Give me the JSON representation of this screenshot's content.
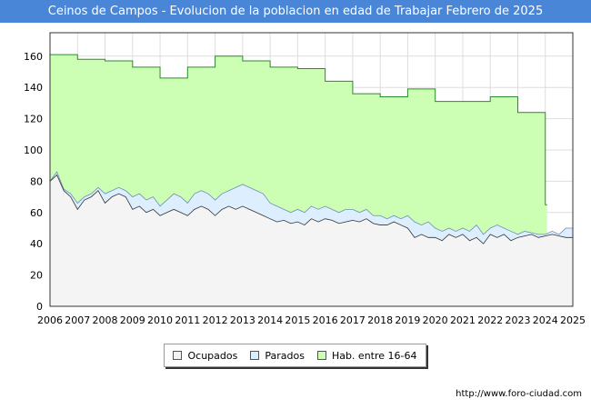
{
  "title": "Ceinos de Campos - Evolucion de la poblacion en edad de Trabajar Febrero de 2025",
  "source": "http://www.foro-ciudad.com",
  "colors": {
    "hab": "#ccffb3",
    "hab_line": "#2d8a2d",
    "parados": "#ddeeff",
    "parados_line": "#6d8fb8",
    "ocupados": "#f4f4f4",
    "ocupados_line": "#333333",
    "title_bg": "#4a86d8"
  },
  "legend": {
    "ocupados": "Ocupados",
    "parados": "Parados",
    "hab": "Hab. entre 16-64"
  },
  "chart_data": {
    "type": "area",
    "title": "Ceinos de Campos - Evolucion de la poblacion en edad de Trabajar Febrero de 2025",
    "xlabel": "",
    "ylabel": "",
    "xlim": [
      2006,
      2025
    ],
    "ylim": [
      0,
      175
    ],
    "yticks": [
      0,
      20,
      40,
      60,
      80,
      100,
      120,
      140,
      160
    ],
    "xticks": [
      "2006",
      "2007",
      "2008",
      "2009",
      "2010",
      "2011",
      "2012",
      "2013",
      "2014",
      "2015",
      "2016",
      "2017",
      "2018",
      "2019",
      "2020",
      "2021",
      "2022",
      "2023",
      "2024",
      "2025"
    ],
    "grid": true,
    "legend_position": "bottom-center",
    "series": [
      {
        "name": "Hab. entre 16-64",
        "step": true,
        "x": [
          2006,
          2007,
          2008,
          2009,
          2010,
          2011,
          2012,
          2013,
          2014,
          2015,
          2016,
          2017,
          2018,
          2019,
          2020,
          2021,
          2022,
          2023,
          2024.0
        ],
        "values": [
          161,
          158,
          157,
          153,
          146,
          153,
          160,
          157,
          153,
          152,
          144,
          136,
          134,
          139,
          131,
          131,
          134,
          124,
          65
        ]
      },
      {
        "name": "Parados",
        "x": [
          2006,
          2006.25,
          2006.5,
          2006.75,
          2007,
          2007.25,
          2007.5,
          2007.75,
          2008,
          2008.25,
          2008.5,
          2008.75,
          2009,
          2009.25,
          2009.5,
          2009.75,
          2010,
          2010.25,
          2010.5,
          2010.75,
          2011,
          2011.25,
          2011.5,
          2011.75,
          2012,
          2012.25,
          2012.5,
          2012.75,
          2013,
          2013.25,
          2013.5,
          2013.75,
          2014,
          2014.25,
          2014.5,
          2014.75,
          2015,
          2015.25,
          2015.5,
          2015.75,
          2016,
          2016.25,
          2016.5,
          2016.75,
          2017,
          2017.25,
          2017.5,
          2017.75,
          2018,
          2018.25,
          2018.5,
          2018.75,
          2019,
          2019.25,
          2019.5,
          2019.75,
          2020,
          2020.25,
          2020.5,
          2020.75,
          2021,
          2021.25,
          2021.5,
          2021.75,
          2022,
          2022.25,
          2022.5,
          2022.75,
          2023,
          2023.25,
          2023.5,
          2023.75,
          2024,
          2024.25,
          2024.5,
          2024.75,
          2025
        ],
        "values": [
          80,
          86,
          75,
          72,
          66,
          70,
          72,
          76,
          72,
          74,
          76,
          74,
          70,
          72,
          68,
          70,
          64,
          68,
          72,
          70,
          66,
          72,
          74,
          72,
          68,
          72,
          74,
          76,
          78,
          76,
          74,
          72,
          66,
          64,
          62,
          60,
          62,
          60,
          64,
          62,
          64,
          62,
          60,
          62,
          62,
          60,
          62,
          58,
          58,
          56,
          58,
          56,
          58,
          54,
          52,
          54,
          50,
          48,
          50,
          48,
          50,
          48,
          52,
          46,
          50,
          52,
          50,
          48,
          46,
          48,
          47,
          46,
          46,
          48,
          46,
          50,
          50
        ]
      },
      {
        "name": "Ocupados",
        "x": [
          2006,
          2006.25,
          2006.5,
          2006.75,
          2007,
          2007.25,
          2007.5,
          2007.75,
          2008,
          2008.25,
          2008.5,
          2008.75,
          2009,
          2009.25,
          2009.5,
          2009.75,
          2010,
          2010.25,
          2010.5,
          2010.75,
          2011,
          2011.25,
          2011.5,
          2011.75,
          2012,
          2012.25,
          2012.5,
          2012.75,
          2013,
          2013.25,
          2013.5,
          2013.75,
          2014,
          2014.25,
          2014.5,
          2014.75,
          2015,
          2015.25,
          2015.5,
          2015.75,
          2016,
          2016.25,
          2016.5,
          2016.75,
          2017,
          2017.25,
          2017.5,
          2017.75,
          2018,
          2018.25,
          2018.5,
          2018.75,
          2019,
          2019.25,
          2019.5,
          2019.75,
          2020,
          2020.25,
          2020.5,
          2020.75,
          2021,
          2021.25,
          2021.5,
          2021.75,
          2022,
          2022.25,
          2022.5,
          2022.75,
          2023,
          2023.25,
          2023.5,
          2023.75,
          2024,
          2024.25,
          2024.5,
          2024.75,
          2025
        ],
        "values": [
          80,
          84,
          74,
          70,
          62,
          68,
          70,
          74,
          66,
          70,
          72,
          70,
          62,
          64,
          60,
          62,
          58,
          60,
          62,
          60,
          58,
          62,
          64,
          62,
          58,
          62,
          64,
          62,
          64,
          62,
          60,
          58,
          56,
          54,
          55,
          53,
          54,
          52,
          56,
          54,
          56,
          55,
          53,
          54,
          55,
          54,
          56,
          53,
          52,
          52,
          54,
          52,
          50,
          44,
          46,
          44,
          44,
          42,
          46,
          44,
          46,
          42,
          44,
          40,
          46,
          44,
          46,
          42,
          44,
          45,
          46,
          44,
          45,
          46,
          45,
          44,
          44
        ]
      }
    ]
  }
}
